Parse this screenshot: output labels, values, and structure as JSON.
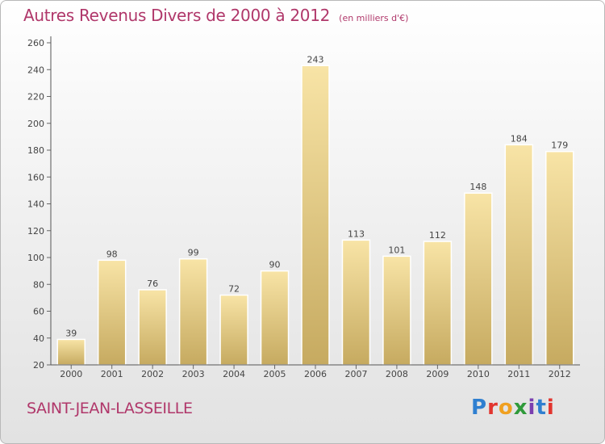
{
  "title": "Autres Revenus Divers de 2000 à 2012",
  "subtitle": "(en milliers d'€)",
  "commune": "SAINT-JEAN-LASSEILLE",
  "logo_text": "Proxiti",
  "colors": {
    "accent": "#b0376a",
    "bar_light": "#f7e2a3",
    "bar_dark": "#c8ac62",
    "axis": "#555555"
  },
  "chart_data": {
    "type": "bar",
    "title": "Autres Revenus Divers de 2000 à 2012",
    "subtitle": "(en milliers d'€)",
    "xlabel": "",
    "ylabel": "",
    "categories": [
      "2000",
      "2001",
      "2002",
      "2003",
      "2004",
      "2005",
      "2006",
      "2007",
      "2008",
      "2009",
      "2010",
      "2011",
      "2012"
    ],
    "values": [
      39,
      98,
      76,
      99,
      72,
      90,
      243,
      113,
      101,
      112,
      148,
      184,
      179
    ],
    "ylim": [
      20,
      260
    ],
    "yticks": [
      20,
      40,
      60,
      80,
      100,
      120,
      140,
      160,
      180,
      200,
      220,
      240,
      260
    ],
    "grid": false,
    "legend": "none"
  }
}
